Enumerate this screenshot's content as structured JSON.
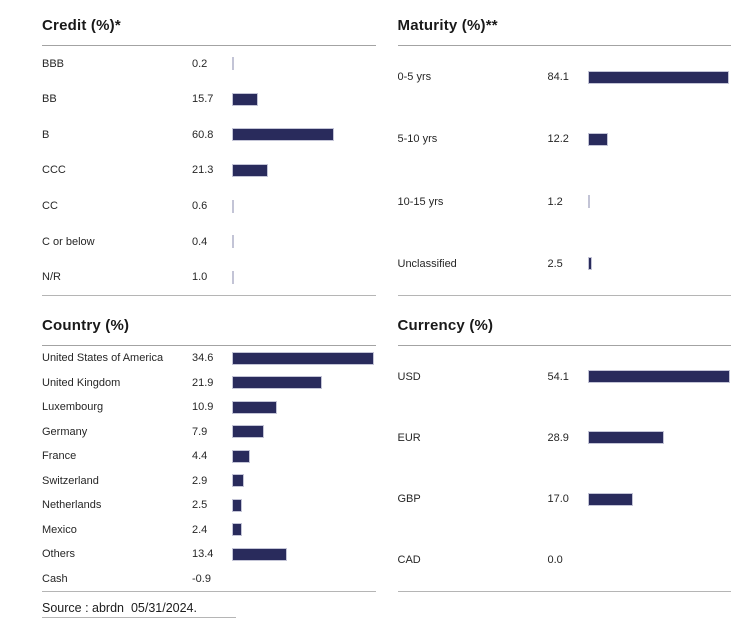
{
  "page": {
    "source_line": "Source : abrdn  05/31/2024."
  },
  "colors": {
    "bar_fill": "#292b5c",
    "bar_border": "#c3c4d6",
    "rule_dark": "#a3a3a3",
    "rule_light": "#b5b5b5"
  },
  "chart_data": [
    {
      "type": "bar",
      "orientation": "horizontal",
      "title": "Credit (%)*",
      "categories": [
        "BBB",
        "BB",
        "B",
        "CCC",
        "CC",
        "C or below",
        "N/R"
      ],
      "values": [
        0.2,
        15.7,
        60.8,
        21.3,
        0.6,
        0.4,
        1.0
      ],
      "xlim": [
        0,
        100
      ],
      "value_format": "one_decimal",
      "grid": false,
      "legend": false
    },
    {
      "type": "bar",
      "orientation": "horizontal",
      "title": "Maturity (%)**",
      "categories": [
        "0-5 yrs",
        "5-10 yrs",
        "10-15 yrs",
        "Unclassified"
      ],
      "values": [
        84.1,
        12.2,
        1.2,
        2.5
      ],
      "xlim": [
        0,
        100
      ],
      "value_format": "one_decimal",
      "grid": false,
      "legend": false
    },
    {
      "type": "bar",
      "orientation": "horizontal",
      "title": "Country (%)",
      "categories": [
        "United States of America",
        "United Kingdom",
        "Luxembourg",
        "Germany",
        "France",
        "Switzerland",
        "Netherlands",
        "Mexico",
        "Others",
        "Cash"
      ],
      "values": [
        34.6,
        21.9,
        10.9,
        7.9,
        4.4,
        2.9,
        2.5,
        2.4,
        13.4,
        -0.9
      ],
      "xlim": [
        0,
        41
      ],
      "value_format": "one_decimal",
      "grid": false,
      "legend": false
    },
    {
      "type": "bar",
      "orientation": "horizontal",
      "title": "Currency (%)",
      "categories": [
        "USD",
        "EUR",
        "GBP",
        "CAD"
      ],
      "values": [
        54.1,
        28.9,
        17.0,
        0.0
      ],
      "xlim": [
        0,
        64
      ],
      "value_format": "one_decimal",
      "grid": false,
      "legend": false
    }
  ]
}
